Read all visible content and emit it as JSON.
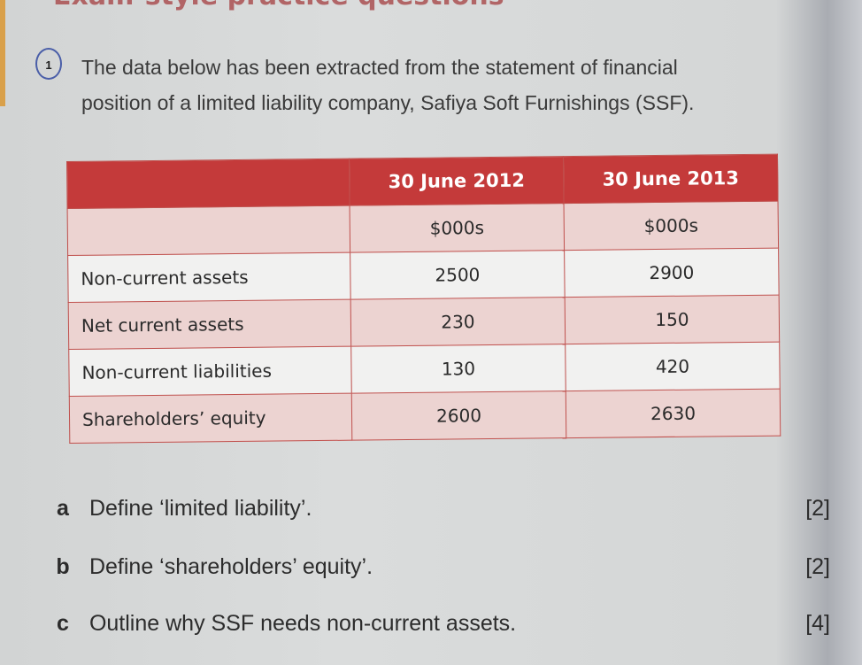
{
  "heading": "Exam-style practice questions",
  "question_number": "1",
  "intro": "The data below has been extracted from the statement of financial position of a limited liability company, Safiya Soft Furnishings (SSF).",
  "table": {
    "headers": [
      "",
      "30 June 2012",
      "30 June 2013"
    ],
    "units": [
      "",
      "$000s",
      "$000s"
    ],
    "rows": [
      {
        "label": "Non-current assets",
        "y2012": "2500",
        "y2013": "2900"
      },
      {
        "label": "Net current assets",
        "y2012": "230",
        "y2013": "150"
      },
      {
        "label": "Non-current liabilities",
        "y2012": "130",
        "y2013": "420"
      },
      {
        "label": "Shareholders’ equity",
        "y2012": "2600",
        "y2013": "2630"
      }
    ]
  },
  "questions": [
    {
      "letter": "a",
      "text": "Define ‘limited liability’.",
      "marks": "[2]"
    },
    {
      "letter": "b",
      "text": "Define ‘shareholders’ equity’.",
      "marks": "[2]"
    },
    {
      "letter": "c",
      "text": "Outline why SSF needs non-current assets.",
      "marks": "[4]"
    }
  ]
}
